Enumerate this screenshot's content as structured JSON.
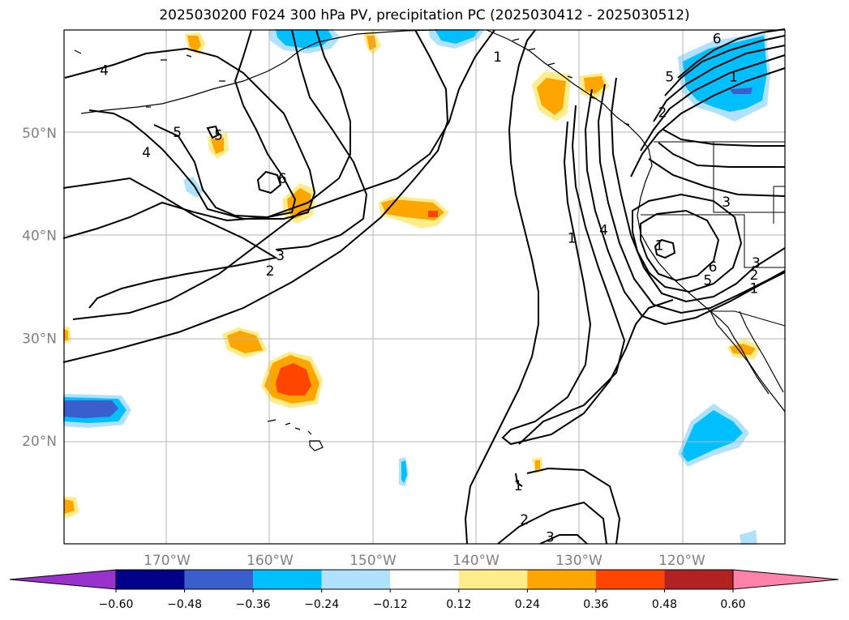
{
  "title": "2025030200 F024 300 hPa PV, precipitation PC (2025030412 - 2025030512)",
  "lat_labels": [
    {
      "deg": 50,
      "label": "50°N"
    },
    {
      "deg": 40,
      "label": "40°N"
    },
    {
      "deg": 30,
      "label": "30°N"
    },
    {
      "deg": 20,
      "label": "20°N"
    }
  ],
  "lon_labels": [
    {
      "deg": -170,
      "label": "170°W"
    },
    {
      "deg": -160,
      "label": "160°W"
    },
    {
      "deg": -150,
      "label": "150°W"
    },
    {
      "deg": -140,
      "label": "140°W"
    },
    {
      "deg": -130,
      "label": "130°W"
    },
    {
      "deg": -120,
      "label": "120°W"
    }
  ],
  "colorbar": {
    "colors": [
      "#9932cc",
      "#00008b",
      "#3a5fcd",
      "#00bfff",
      "#b0e2ff",
      "#ffffff",
      "#ffec8b",
      "#ffa500",
      "#ff4500",
      "#b22222",
      "#ff82ab"
    ],
    "tick_labels": [
      "−0.60",
      "−0.48",
      "−0.36",
      "−0.24",
      "−0.12",
      "0.12",
      "0.24",
      "0.36",
      "0.48",
      "0.60"
    ]
  },
  "contour_labels": [
    {
      "text": "4",
      "lon": -176.1,
      "lat": 56.0
    },
    {
      "text": "5",
      "lon": -169.0,
      "lat": 50.0
    },
    {
      "text": "4",
      "lon": -172.0,
      "lat": 48.0
    },
    {
      "text": "5",
      "lon": -165.0,
      "lat": 49.7
    },
    {
      "text": "6",
      "lon": -158.8,
      "lat": 45.5
    },
    {
      "text": "3",
      "lon": -159.0,
      "lat": 38.0
    },
    {
      "text": "2",
      "lon": -160.0,
      "lat": 36.5
    },
    {
      "text": "1",
      "lon": -137.9,
      "lat": 57.3
    },
    {
      "text": "1",
      "lon": -130.7,
      "lat": 39.7
    },
    {
      "text": "4",
      "lon": -127.6,
      "lat": 40.5
    },
    {
      "text": "1",
      "lon": -122.2,
      "lat": 39.0
    },
    {
      "text": "6",
      "lon": -117.0,
      "lat": 36.9
    },
    {
      "text": "5",
      "lon": -117.5,
      "lat": 35.6
    },
    {
      "text": "3",
      "lon": -112.8,
      "lat": 37.3
    },
    {
      "text": "2",
      "lon": -113.0,
      "lat": 36.1
    },
    {
      "text": "1",
      "lon": -113.0,
      "lat": 34.8
    },
    {
      "text": "3",
      "lon": -115.7,
      "lat": 43.2
    },
    {
      "text": "6",
      "lon": -116.6,
      "lat": 59.1
    },
    {
      "text": "5",
      "lon": -121.2,
      "lat": 55.4
    },
    {
      "text": "2",
      "lon": -121.9,
      "lat": 51.9
    },
    {
      "text": "1",
      "lon": -115.0,
      "lat": 55.4
    },
    {
      "text": "1",
      "lon": -135.9,
      "lat": 15.6
    },
    {
      "text": "2",
      "lon": -135.3,
      "lat": 12.3
    },
    {
      "text": "3",
      "lon": -132.8,
      "lat": 10.6
    }
  ]
}
